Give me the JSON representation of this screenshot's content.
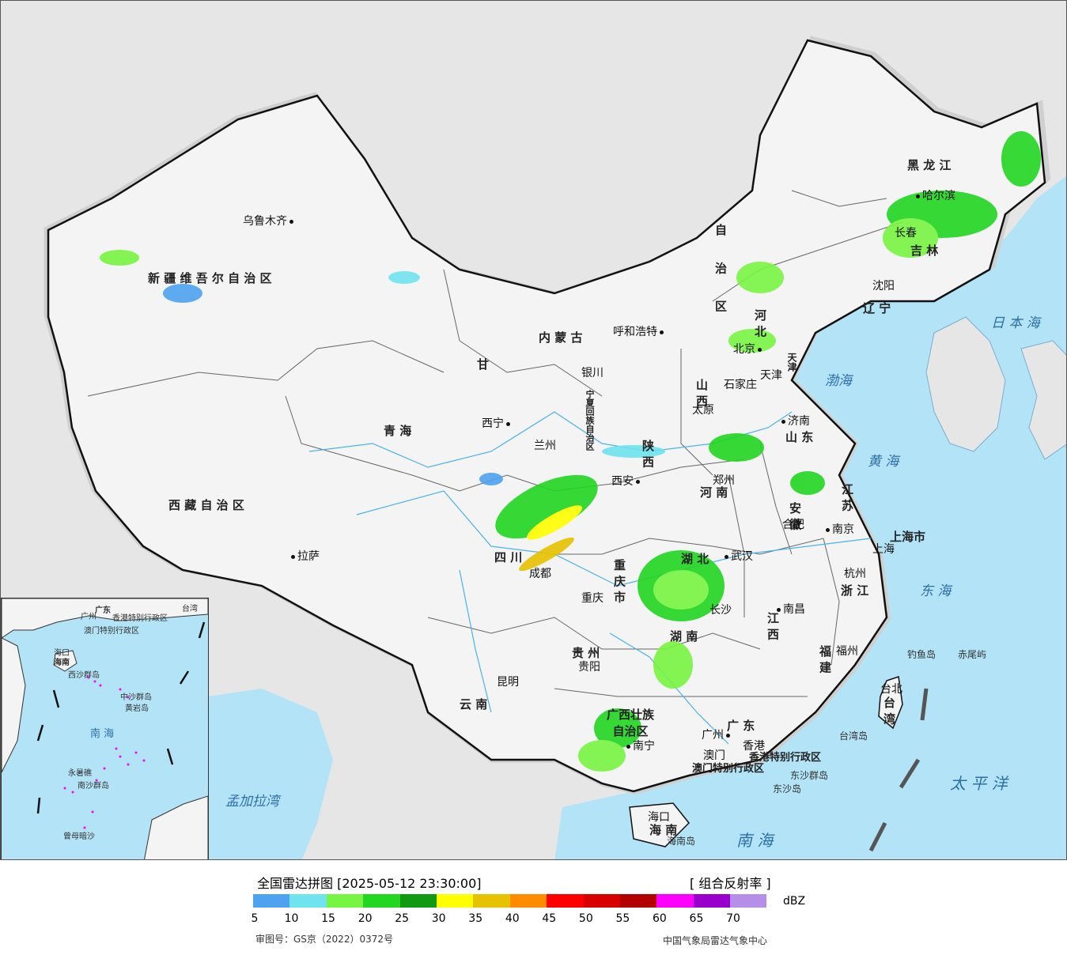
{
  "map": {
    "provinces": [
      {
        "id": "xinjiang",
        "label": "新 疆 维 吾 尔 自 治 区"
      },
      {
        "id": "xizang",
        "label": "西 藏 自 治 区"
      },
      {
        "id": "qinghai",
        "label": "青   海"
      },
      {
        "id": "gansu",
        "label": "甘"
      },
      {
        "id": "neimenggu",
        "label": "内   蒙   古"
      },
      {
        "id": "heilongjiang",
        "label": "黑 龙 江"
      },
      {
        "id": "jilin",
        "label": "吉 林"
      },
      {
        "id": "liaoning",
        "label": "辽 宁"
      },
      {
        "id": "hebei",
        "label": "河 北"
      },
      {
        "id": "shanxi",
        "label": "山 西"
      },
      {
        "id": "shandong",
        "label": "山 东"
      },
      {
        "id": "henan",
        "label": "河 南"
      },
      {
        "id": "shaanxi",
        "label": "陕 西"
      },
      {
        "id": "sichuan",
        "label": "四 川"
      },
      {
        "id": "chongqing",
        "label": "重 庆 市"
      },
      {
        "id": "hubei",
        "label": "湖 北"
      },
      {
        "id": "hunan",
        "label": "湖 南"
      },
      {
        "id": "anhui",
        "label": "安 徽"
      },
      {
        "id": "jiangsu",
        "label": "江 苏"
      },
      {
        "id": "zhejiang",
        "label": "浙 江"
      },
      {
        "id": "jiangxi",
        "label": "江 西"
      },
      {
        "id": "fujian",
        "label": "福 建"
      },
      {
        "id": "guizhou",
        "label": "贵 州"
      },
      {
        "id": "yunnan",
        "label": "云 南"
      },
      {
        "id": "guangxi",
        "label": "广西壮族 自治区"
      },
      {
        "id": "guangdong",
        "label": "广 东"
      },
      {
        "id": "hainan",
        "label": "海 南"
      },
      {
        "id": "taiwan",
        "label": "台 湾"
      },
      {
        "id": "shanghai",
        "label": "上海市"
      },
      {
        "id": "tianjin",
        "label": "天津"
      },
      {
        "id": "ningxia",
        "label": "宁夏回族自治区"
      },
      {
        "id": "neimeng_zi",
        "label": "自 治 区"
      },
      {
        "id": "hk",
        "label": "香港特别行政区"
      },
      {
        "id": "macau",
        "label": "澳门特别行政区"
      }
    ],
    "cities": [
      "乌鲁木齐",
      "拉萨",
      "西宁",
      "兰州",
      "银川",
      "呼和浩特",
      "北京",
      "天津",
      "石家庄",
      "太原",
      "济南",
      "郑州",
      "西安",
      "成都",
      "重庆",
      "武汉",
      "合肥",
      "南京",
      "上海",
      "杭州",
      "长沙",
      "南昌",
      "福州",
      "贵阳",
      "昆明",
      "南宁",
      "广州",
      "澳门",
      "香港",
      "海口",
      "台北",
      "哈尔滨",
      "长春",
      "沈阳"
    ],
    "seas": [
      "渤海",
      "黄 海",
      "东 海",
      "日 本 海",
      "太 平 洋",
      "南 海",
      "孟加拉湾"
    ],
    "islands": [
      "钓鱼岛",
      "赤尾屿",
      "台湾岛",
      "东沙群岛",
      "东沙岛",
      "海南岛"
    ],
    "inset": [
      "广东",
      "广州",
      "香港特别行政区",
      "澳门特别行政区",
      "海口",
      "海南",
      "西沙群岛",
      "中沙群岛",
      "黄岩岛",
      "南 海",
      "永暑礁",
      "南沙群岛",
      "曾母暗沙",
      "台湾"
    ]
  },
  "legend": {
    "title": "全国雷达拼图 [2025-05-12 23:30:00]",
    "product": "[ 组合反射率 ]",
    "unit": "dBZ",
    "colors": [
      "#4da3f0",
      "#6fe3ee",
      "#78f542",
      "#22d622",
      "#119911",
      "#ffff00",
      "#e6c200",
      "#ff8c00",
      "#ff0000",
      "#d90000",
      "#b30000",
      "#ff00ff",
      "#9900cc",
      "#b48ee8"
    ],
    "ticks": [
      "5",
      "10",
      "15",
      "20",
      "25",
      "30",
      "35",
      "40",
      "45",
      "50",
      "55",
      "60",
      "65",
      "70"
    ],
    "approval": "审图号：GS京（2022）0372号",
    "credit": "中国气象局雷达气象中心"
  }
}
